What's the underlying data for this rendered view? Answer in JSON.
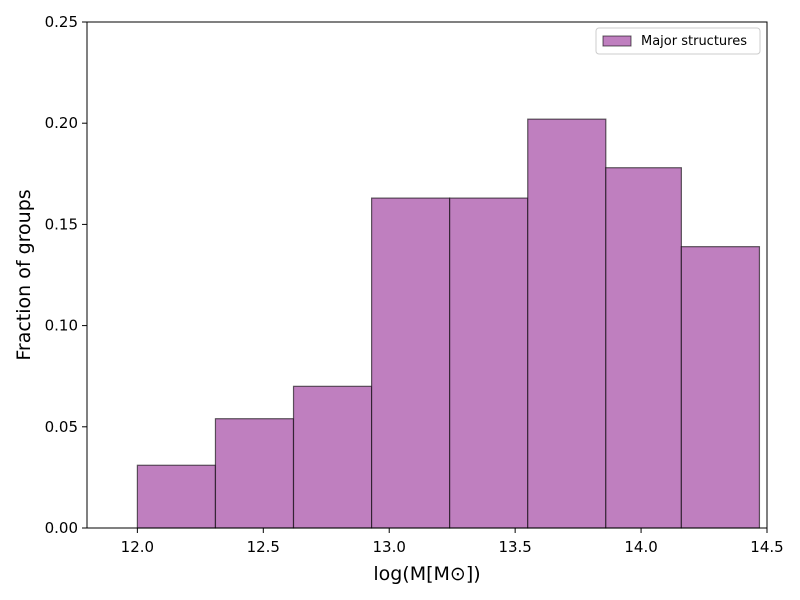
{
  "chart_data": {
    "type": "bar",
    "subtype": "histogram",
    "bin_edges": [
      12.0,
      12.31,
      12.62,
      12.93,
      13.24,
      13.55,
      13.86,
      14.16,
      14.47
    ],
    "values": [
      0.031,
      0.054,
      0.07,
      0.163,
      0.163,
      0.202,
      0.178,
      0.139
    ],
    "xlabel": "log(M[M⊙])",
    "ylabel": "Fraction of groups",
    "xlim": [
      11.8,
      14.5
    ],
    "ylim": [
      0,
      0.25
    ],
    "xticks": [
      12.0,
      12.5,
      13.0,
      13.5,
      14.0,
      14.5
    ],
    "xtick_labels": [
      "12.0",
      "12.5",
      "13.0",
      "13.5",
      "14.0",
      "14.5"
    ],
    "yticks": [
      0,
      0.05,
      0.1,
      0.15,
      0.2,
      0.25
    ],
    "ytick_labels": [
      "0.00",
      "0.05",
      "0.10",
      "0.15",
      "0.20",
      "0.25"
    ],
    "grid": false,
    "legend": {
      "position": "top-right",
      "entries": [
        "Major structures"
      ]
    },
    "series": [
      {
        "name": "Major structures",
        "color": "#bf7fbf"
      }
    ],
    "bar_edge_color": "#000000"
  }
}
